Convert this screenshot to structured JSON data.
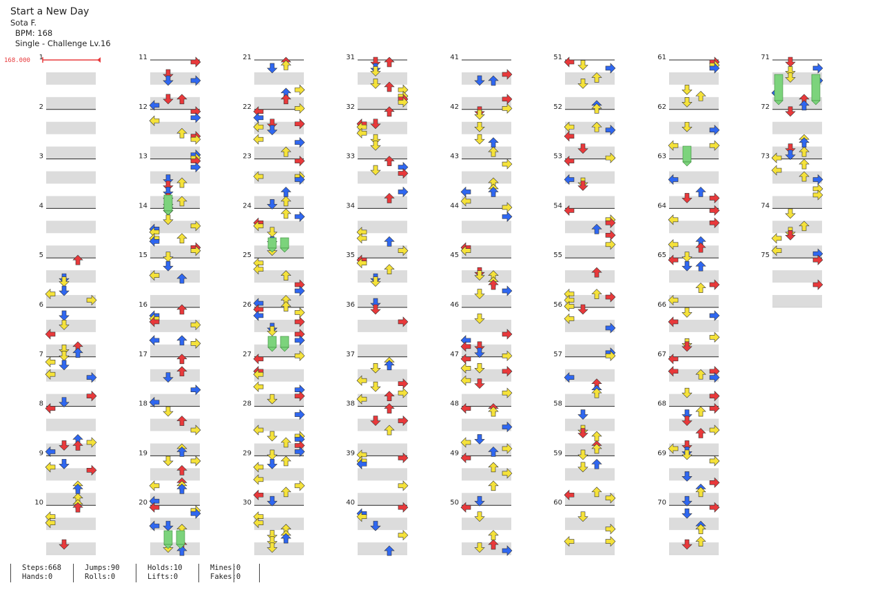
{
  "song": {
    "title": "Start a New Day",
    "artist": "Sota F.",
    "bpm_label": "BPM: 168",
    "difficulty_label": "Single - Challenge Lv.16"
  },
  "bpm_marker": {
    "label": "168.000",
    "color": "#e8393b"
  },
  "measure_labels": [
    "1",
    "2",
    "3",
    "4",
    "5",
    "6",
    "7",
    "8",
    "9",
    "10",
    "11",
    "12",
    "13",
    "14",
    "15",
    "16",
    "17",
    "18",
    "19",
    "20",
    "21",
    "22",
    "23",
    "24",
    "25",
    "26",
    "27",
    "28",
    "29",
    "30",
    "31",
    "32",
    "33",
    "34",
    "35",
    "36",
    "37",
    "38",
    "39",
    "40",
    "41",
    "42",
    "43",
    "44",
    "45",
    "46",
    "47",
    "48",
    "49",
    "50",
    "51",
    "52",
    "53",
    "54",
    "55",
    "56",
    "57",
    "58",
    "59",
    "60",
    "61",
    "62",
    "63",
    "64",
    "65",
    "66",
    "67",
    "68",
    "69",
    "70",
    "71",
    "72",
    "73",
    "74",
    "75"
  ],
  "colors": {
    "red_quarter": "#e8393b",
    "blue_eighth": "#2f67f0",
    "yellow_sixteenth": "#f5e23a",
    "hold": "#7cd37c",
    "band": "#dcdcdc",
    "measure_line": "#222222"
  },
  "stats": {
    "steps": "Steps:668",
    "jumps": "Jumps:90",
    "holds": "Holds:10",
    "mines": "Mines:0",
    "hands": "Hands:0",
    "rolls": "Rolls:0",
    "lifts": "Lifts:0",
    "fakes": "Fakes:0"
  }
}
